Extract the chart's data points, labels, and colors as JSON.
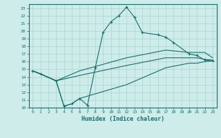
{
  "xlabel": "Humidex (Indice chaleur)",
  "ylabel": "",
  "xlim": [
    -0.5,
    23.5
  ],
  "ylim": [
    10,
    23.5
  ],
  "xticks": [
    0,
    1,
    2,
    3,
    4,
    5,
    6,
    7,
    8,
    9,
    10,
    11,
    12,
    13,
    14,
    15,
    16,
    17,
    18,
    19,
    20,
    21,
    22,
    23
  ],
  "yticks": [
    10,
    11,
    12,
    13,
    14,
    15,
    16,
    17,
    18,
    19,
    20,
    21,
    22,
    23
  ],
  "bg_color": "#cdecea",
  "grid_color": "#acd4d0",
  "line_color": "#1a6b6b",
  "series": [
    {
      "x": [
        0,
        1,
        3,
        4,
        5,
        6,
        7,
        8,
        9,
        10,
        11,
        12,
        13,
        14,
        16,
        17,
        18,
        20,
        21,
        22,
        23
      ],
      "y": [
        14.8,
        14.4,
        13.5,
        10.2,
        10.5,
        11.2,
        10.3,
        15.2,
        19.8,
        21.2,
        22.0,
        23.1,
        21.8,
        19.8,
        19.5,
        19.2,
        18.5,
        17.0,
        16.8,
        16.2,
        16.1
      ],
      "marker": "+"
    },
    {
      "x": [
        0,
        1,
        3,
        6,
        12,
        17,
        20,
        21,
        22,
        23
      ],
      "y": [
        14.8,
        14.4,
        13.5,
        14.8,
        16.5,
        17.5,
        17.2,
        17.2,
        17.2,
        16.5
      ],
      "marker": null
    },
    {
      "x": [
        0,
        1,
        3,
        6,
        12,
        17,
        20,
        21,
        22,
        23
      ],
      "y": [
        14.8,
        14.4,
        13.5,
        14.2,
        15.5,
        16.5,
        16.5,
        16.5,
        16.3,
        16.2
      ],
      "marker": null
    },
    {
      "x": [
        0,
        1,
        3,
        4,
        5,
        6,
        12,
        17,
        20,
        21,
        22,
        23
      ],
      "y": [
        14.8,
        14.4,
        13.5,
        10.2,
        10.5,
        11.2,
        13.0,
        15.2,
        15.8,
        15.8,
        16.0,
        16.1
      ],
      "marker": null
    }
  ]
}
